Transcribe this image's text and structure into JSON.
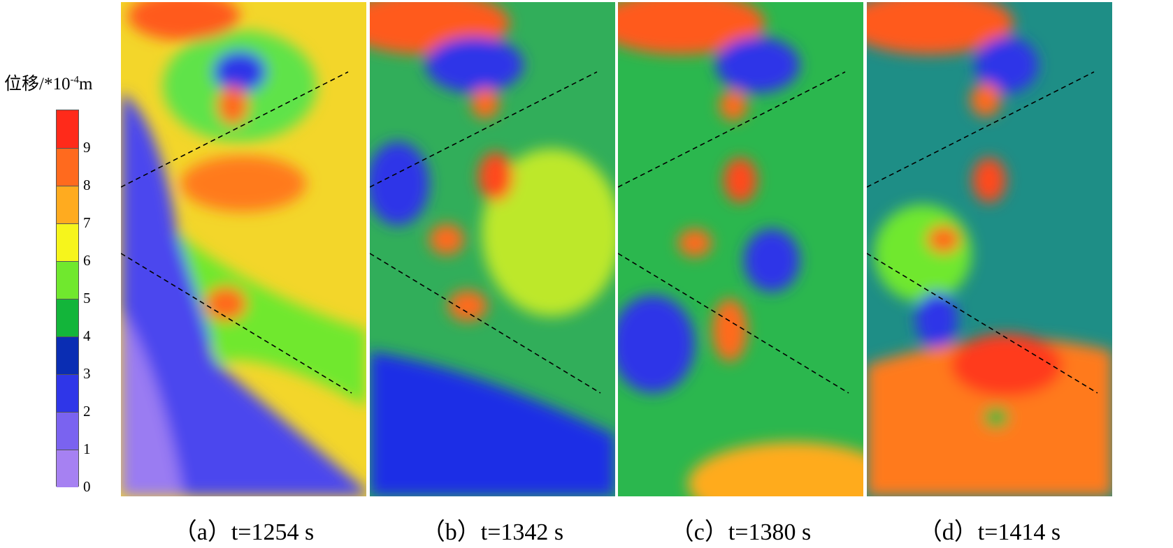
{
  "legend": {
    "title_prefix": "位移/*10",
    "title_exp": "-4",
    "title_unit": "m",
    "ticks": [
      "9",
      "8",
      "7",
      "6",
      "5",
      "4",
      "3",
      "2",
      "1",
      "0"
    ],
    "colors": [
      "#ff2a1a",
      "#ff6a1e",
      "#ffab1f",
      "#f6f51c",
      "#70e82e",
      "#13b53a",
      "#0a2db3",
      "#2f36e8",
      "#7a63f0",
      "#a681f2"
    ]
  },
  "chart_data": {
    "type": "heatmap",
    "value_range": [
      0,
      10
    ],
    "panels": [
      {
        "caption": "（a）t=1254 s",
        "base_color": "#f3d62a",
        "dominant_range": [
          0,
          9
        ]
      },
      {
        "caption": "（b）t=1342 s",
        "base_color": "#31ae5a",
        "dominant_range": [
          2,
          9
        ]
      },
      {
        "caption": "（c）t=1380 s",
        "base_color": "#2bb74e",
        "dominant_range": [
          2,
          9
        ]
      },
      {
        "caption": "（d）t=1414 s",
        "base_color": "#1e8e86",
        "dominant_range": [
          2,
          9
        ]
      }
    ]
  }
}
